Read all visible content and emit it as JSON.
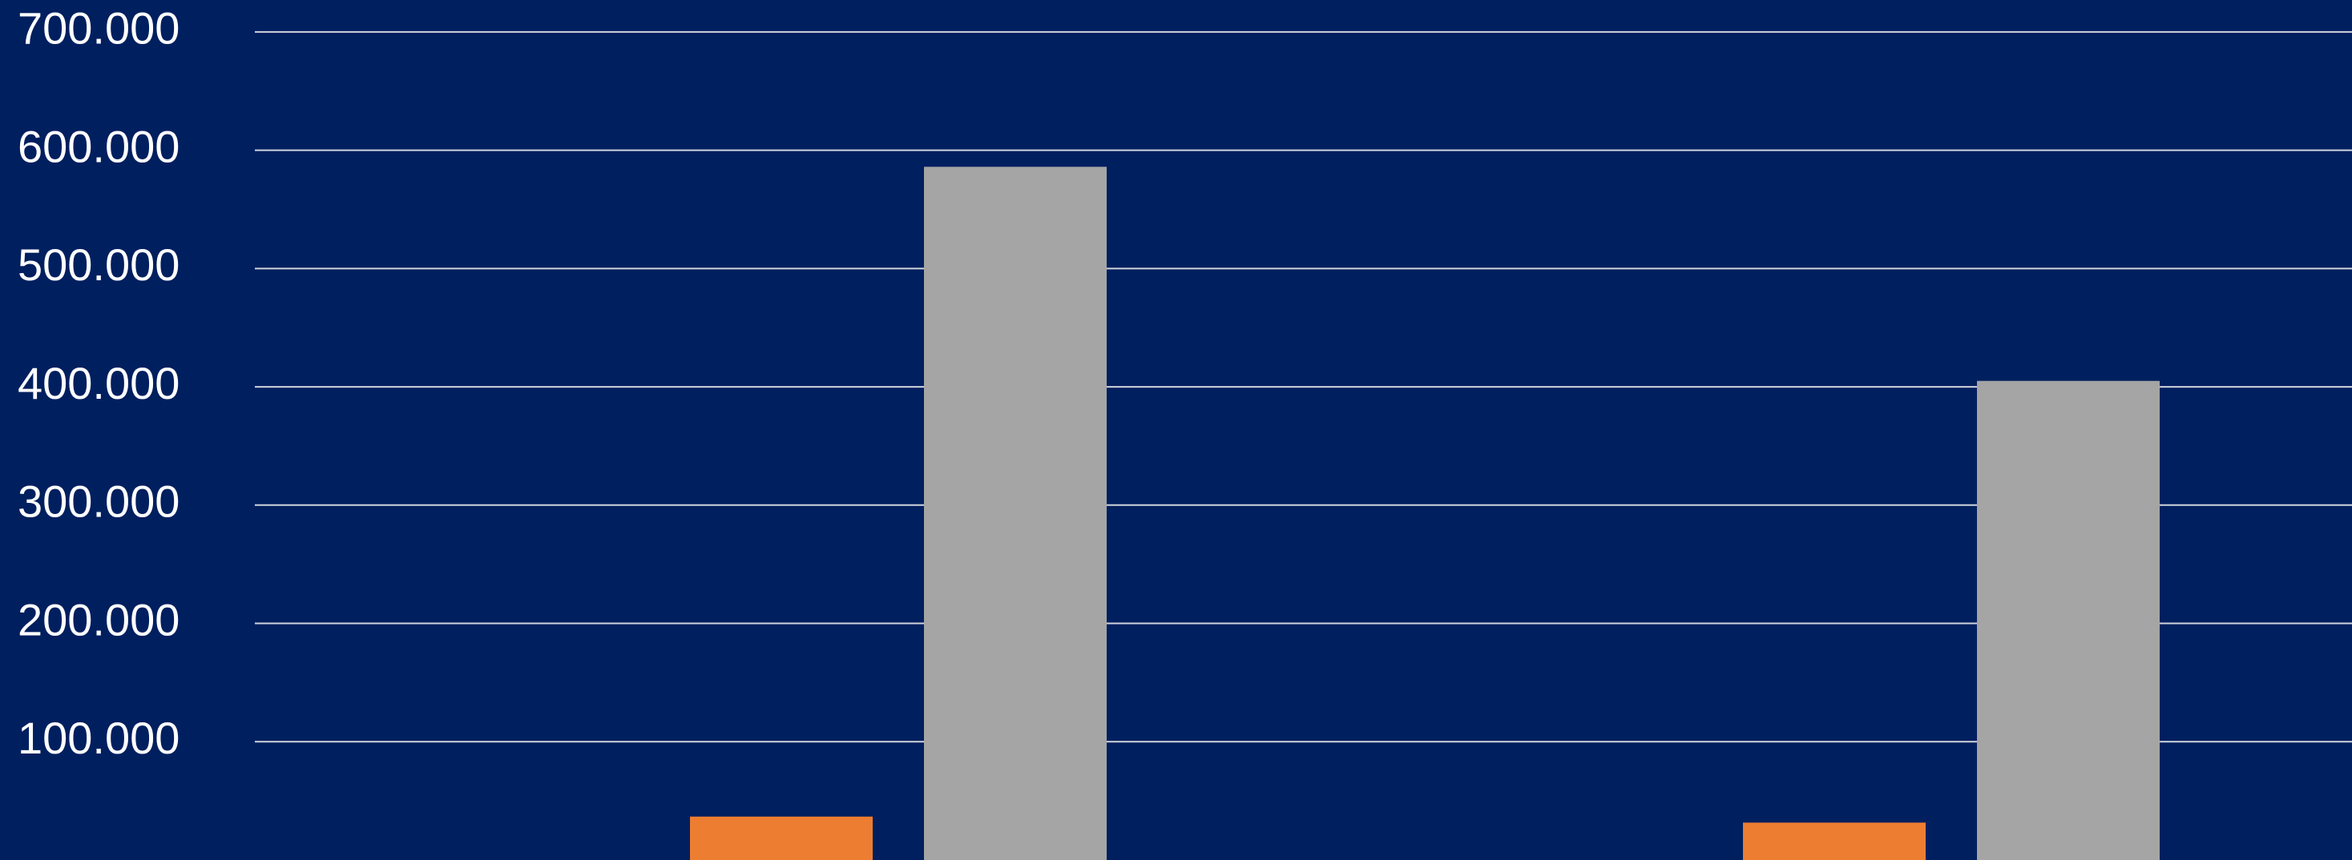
{
  "chart_data": {
    "type": "bar",
    "categories": [
      null,
      null
    ],
    "series": [
      {
        "color": "#ed7d31",
        "values": [
          36700,
          31600
        ]
      },
      {
        "color": "#a5a5a5",
        "values": [
          586000,
          405000
        ]
      }
    ],
    "ylim": [
      0,
      727000
    ],
    "yticks": [
      {
        "value": 100000,
        "label": "100.000"
      },
      {
        "value": 200000,
        "label": "200.000"
      },
      {
        "value": 300000,
        "label": "300.000"
      },
      {
        "value": 400000,
        "label": "400.000"
      },
      {
        "value": 500000,
        "label": "500.000"
      },
      {
        "value": 600000,
        "label": "600.000"
      },
      {
        "value": 700000,
        "label": "700.000"
      }
    ],
    "grid": true,
    "background": "#001f5f"
  }
}
